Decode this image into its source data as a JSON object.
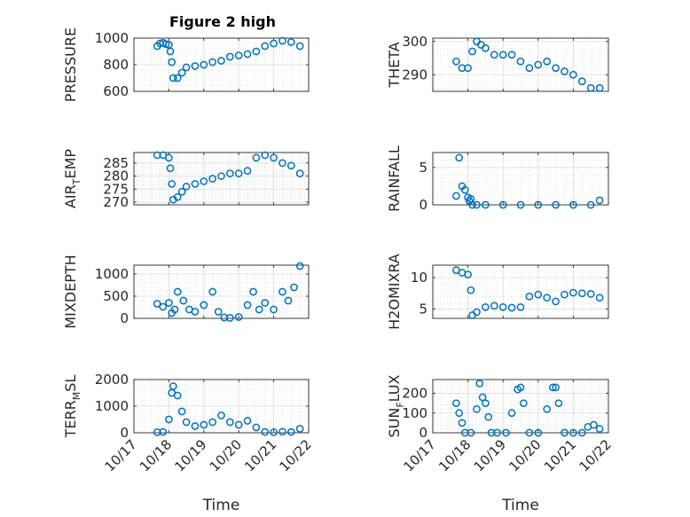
{
  "figure_title": "Figure 2 high",
  "colors": {
    "marker": "#0072BD",
    "axis": "#262626",
    "grid": "#dcdcdc",
    "grid_minor": "#c8c8c8"
  },
  "chart_data": [
    {
      "type": "scatter",
      "ylabel": "PRESSURE",
      "ylim": [
        600,
        1000
      ],
      "yticks": [
        600,
        800,
        1000
      ],
      "grid": true,
      "xtick_labels": false,
      "x": [
        "10/17 16:00",
        "10/17 18:00",
        "10/17 20:00",
        "10/17 22:00",
        "10/18 00:00",
        "10/18 01:00",
        "10/18 02:00",
        "10/18 03:00",
        "10/18 06:00",
        "10/18 09:00",
        "10/18 12:00",
        "10/18 18:00",
        "10/19 00:00",
        "10/19 06:00",
        "10/19 12:00",
        "10/19 18:00",
        "10/20 00:00",
        "10/20 06:00",
        "10/20 12:00",
        "10/20 18:00",
        "10/21 00:00",
        "10/21 06:00",
        "10/21 12:00",
        "10/21 18:00"
      ],
      "y": [
        940,
        960,
        965,
        955,
        950,
        900,
        820,
        700,
        700,
        740,
        780,
        790,
        800,
        820,
        830,
        860,
        870,
        880,
        900,
        940,
        960,
        980,
        970,
        940
      ]
    },
    {
      "type": "scatter",
      "ylabel": "THETA",
      "ylim": [
        285,
        301
      ],
      "yticks": [
        290,
        300
      ],
      "grid": true,
      "xtick_labels": false,
      "x": [
        "10/17 16:00",
        "10/17 20:00",
        "10/18 00:00",
        "10/18 03:00",
        "10/18 06:00",
        "10/18 09:00",
        "10/18 12:00",
        "10/18 18:00",
        "10/19 00:00",
        "10/19 06:00",
        "10/19 12:00",
        "10/19 18:00",
        "10/20 00:00",
        "10/20 06:00",
        "10/20 12:00",
        "10/20 18:00",
        "10/21 00:00",
        "10/21 06:00",
        "10/21 12:00",
        "10/21 18:00"
      ],
      "y": [
        294,
        292,
        292,
        297,
        300,
        299,
        298,
        296,
        296,
        296,
        294,
        292,
        293,
        294,
        292,
        291,
        290,
        288,
        286,
        286
      ]
    },
    {
      "type": "scatter",
      "ylabel": "AIR_TEMP",
      "ylim": [
        269,
        289
      ],
      "yticks": [
        270,
        275,
        280,
        285
      ],
      "grid": true,
      "xtick_labels": false,
      "x": [
        "10/17 16:00",
        "10/17 20:00",
        "10/18 00:00",
        "10/18 01:00",
        "10/18 02:00",
        "10/18 03:00",
        "10/18 06:00",
        "10/18 09:00",
        "10/18 12:00",
        "10/18 18:00",
        "10/19 00:00",
        "10/19 06:00",
        "10/19 12:00",
        "10/19 18:00",
        "10/20 00:00",
        "10/20 06:00",
        "10/20 12:00",
        "10/20 18:00",
        "10/21 00:00",
        "10/21 06:00",
        "10/21 12:00",
        "10/21 18:00"
      ],
      "y": [
        288,
        288,
        287,
        283,
        277,
        271,
        272,
        274,
        276,
        277,
        278,
        279,
        280,
        281,
        281,
        282,
        287,
        288,
        287,
        285,
        284,
        281
      ]
    },
    {
      "type": "scatter",
      "ylabel": "RAINFALL",
      "ylim": [
        0,
        7
      ],
      "yticks": [
        0,
        5
      ],
      "grid": true,
      "xtick_labels": false,
      "x": [
        "10/17 16:00",
        "10/17 18:00",
        "10/17 20:00",
        "10/17 22:00",
        "10/18 00:00",
        "10/18 01:00",
        "10/18 02:00",
        "10/18 03:00",
        "10/18 06:00",
        "10/18 12:00",
        "10/19 00:00",
        "10/19 12:00",
        "10/20 00:00",
        "10/20 12:00",
        "10/21 00:00",
        "10/21 12:00",
        "10/21 18:00"
      ],
      "y": [
        1.2,
        6.3,
        2.5,
        2.0,
        1.0,
        0.5,
        0.8,
        0,
        0,
        0,
        0,
        0,
        0,
        0,
        0,
        0,
        0.6
      ]
    },
    {
      "type": "scatter",
      "ylabel": "MIXDEPTH",
      "ylim": [
        0,
        1200
      ],
      "yticks": [
        0,
        500,
        1000
      ],
      "grid": true,
      "xtick_labels": false,
      "x": [
        "10/17 16:00",
        "10/17 20:00",
        "10/18 00:00",
        "10/18 02:00",
        "10/18 04:00",
        "10/18 06:00",
        "10/18 10:00",
        "10/18 14:00",
        "10/18 18:00",
        "10/19 00:00",
        "10/19 06:00",
        "10/19 10:00",
        "10/19 14:00",
        "10/19 18:00",
        "10/20 00:00",
        "10/20 06:00",
        "10/20 10:00",
        "10/20 14:00",
        "10/20 18:00",
        "10/21 00:00",
        "10/21 06:00",
        "10/21 10:00",
        "10/21 14:00",
        "10/21 18:00"
      ],
      "y": [
        330,
        260,
        350,
        120,
        200,
        600,
        400,
        200,
        150,
        300,
        600,
        150,
        20,
        10,
        30,
        300,
        600,
        200,
        350,
        200,
        600,
        400,
        700,
        1180
      ]
    },
    {
      "type": "scatter",
      "ylabel": "H2OMIXRA",
      "ylim": [
        3.5,
        12
      ],
      "yticks": [
        5,
        10
      ],
      "grid": true,
      "xtick_labels": false,
      "x": [
        "10/17 16:00",
        "10/17 20:00",
        "10/18 00:00",
        "10/18 02:00",
        "10/18 03:00",
        "10/18 06:00",
        "10/18 12:00",
        "10/18 18:00",
        "10/19 00:00",
        "10/19 06:00",
        "10/19 12:00",
        "10/19 18:00",
        "10/20 00:00",
        "10/20 06:00",
        "10/20 12:00",
        "10/20 18:00",
        "10/21 00:00",
        "10/21 06:00",
        "10/21 12:00",
        "10/21 18:00"
      ],
      "y": [
        11.2,
        10.8,
        10.5,
        8.0,
        4.0,
        4.5,
        5.3,
        5.5,
        5.3,
        5.2,
        5.3,
        7.0,
        7.3,
        6.8,
        6.2,
        7.3,
        7.6,
        7.5,
        7.4,
        6.8
      ]
    },
    {
      "type": "scatter",
      "ylabel": "TERR_MSL",
      "ylim": [
        0,
        2000
      ],
      "yticks": [
        0,
        1000,
        2000
      ],
      "grid": true,
      "xtick_labels": true,
      "x": [
        "10/17 16:00",
        "10/17 20:00",
        "10/18 00:00",
        "10/18 02:00",
        "10/18 03:00",
        "10/18 06:00",
        "10/18 09:00",
        "10/18 12:00",
        "10/18 18:00",
        "10/19 00:00",
        "10/19 06:00",
        "10/19 12:00",
        "10/19 18:00",
        "10/20 00:00",
        "10/20 06:00",
        "10/20 12:00",
        "10/20 18:00",
        "10/21 00:00",
        "10/21 06:00",
        "10/21 12:00",
        "10/21 18:00"
      ],
      "y": [
        20,
        30,
        500,
        1500,
        1750,
        1400,
        800,
        400,
        250,
        300,
        400,
        650,
        400,
        300,
        450,
        200,
        30,
        20,
        40,
        30,
        150
      ]
    },
    {
      "type": "scatter",
      "ylabel": "SUN_FLUX",
      "ylim": [
        0,
        270
      ],
      "yticks": [
        0,
        100,
        200
      ],
      "grid": true,
      "xtick_labels": true,
      "x": [
        "10/17 16:00",
        "10/17 18:00",
        "10/17 20:00",
        "10/17 22:00",
        "10/18 02:00",
        "10/18 06:00",
        "10/18 08:00",
        "10/18 10:00",
        "10/18 12:00",
        "10/18 14:00",
        "10/18 16:00",
        "10/18 20:00",
        "10/19 02:00",
        "10/19 06:00",
        "10/19 10:00",
        "10/19 12:00",
        "10/19 14:00",
        "10/19 18:00",
        "10/20 00:00",
        "10/20 06:00",
        "10/20 10:00",
        "10/20 12:00",
        "10/20 14:00",
        "10/20 18:00",
        "10/21 00:00",
        "10/21 06:00",
        "10/21 10:00",
        "10/21 14:00",
        "10/21 18:00"
      ],
      "y": [
        150,
        100,
        50,
        0,
        0,
        120,
        250,
        180,
        150,
        80,
        0,
        0,
        0,
        100,
        220,
        230,
        150,
        0,
        0,
        120,
        230,
        230,
        150,
        0,
        0,
        0,
        30,
        40,
        20
      ]
    }
  ],
  "xaxis": {
    "xlim": [
      "10/17 00:00",
      "10/22 00:00"
    ],
    "tick_labels": [
      "10/17",
      "10/18",
      "10/19",
      "10/20",
      "10/21",
      "10/22"
    ],
    "xlabel": "Time"
  }
}
